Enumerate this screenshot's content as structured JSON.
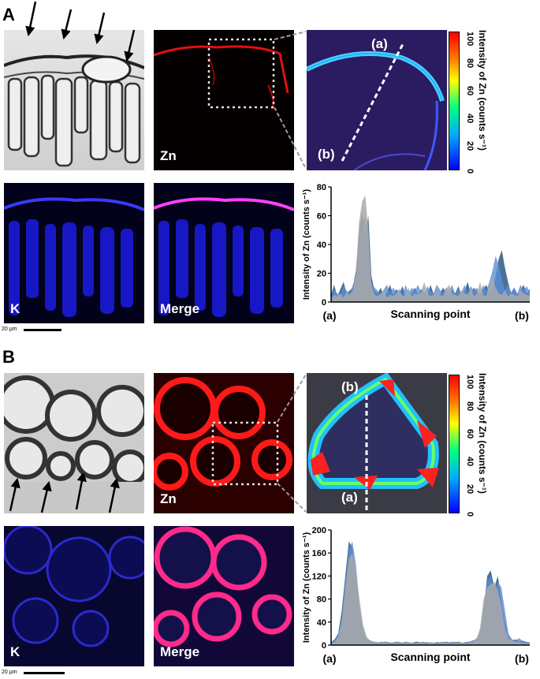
{
  "panelA": {
    "letter": "A",
    "zn_label": "Zn",
    "k_label": "K",
    "merge_label": "Merge",
    "scale_label": "20 μm",
    "line_a": "(a)",
    "line_b": "(b)",
    "colorbar": {
      "ticks": [
        "0",
        "20",
        "40",
        "60",
        "80",
        "100"
      ],
      "title": "Intensity of Zn (counts s⁻¹)"
    }
  },
  "panelB": {
    "letter": "B",
    "zn_label": "Zn",
    "k_label": "K",
    "merge_label": "Merge",
    "scale_label": "20 μm",
    "line_a": "(a)",
    "line_b": "(b)",
    "colorbar": {
      "ticks": [
        "0",
        "20",
        "40",
        "60",
        "80",
        "100"
      ],
      "title": "Intensity of Zn (counts s⁻¹)"
    }
  },
  "chart_data": [
    {
      "type": "area",
      "ylabel": "Intensity of Zn (counts s⁻¹)",
      "xlabel": "Scanning point",
      "x_start_label": "(a)",
      "x_end_label": "(b)",
      "yticks": [
        "0",
        "20",
        "40",
        "60",
        "80"
      ],
      "ylim": [
        0,
        80
      ],
      "series": [
        {
          "color": "#1f4e79",
          "values": [
            5,
            12,
            4,
            9,
            14,
            6,
            8,
            10,
            22,
            48,
            62,
            45,
            60,
            18,
            8,
            6,
            10,
            4,
            7,
            12,
            5,
            9,
            6,
            11,
            4,
            8,
            6,
            10,
            5,
            9,
            7,
            4,
            12,
            6,
            8,
            5,
            10,
            7,
            4,
            9,
            6,
            11,
            5,
            8,
            14,
            6,
            10,
            7,
            5,
            9,
            12,
            6,
            8,
            18,
            30,
            36,
            24,
            14,
            6,
            10,
            5,
            8,
            12,
            6,
            9
          ]
        },
        {
          "color": "#5b8fd6",
          "values": [
            3,
            9,
            6,
            5,
            11,
            8,
            6,
            12,
            18,
            40,
            55,
            60,
            42,
            14,
            10,
            8,
            5,
            9,
            12,
            6,
            10,
            7,
            9,
            5,
            12,
            6,
            10,
            8,
            12,
            7,
            5,
            11,
            8,
            6,
            12,
            9,
            6,
            10,
            8,
            12,
            5,
            9,
            7,
            12,
            6,
            11,
            8,
            10,
            6,
            12,
            8,
            14,
            22,
            32,
            26,
            16,
            8,
            12,
            7,
            10,
            6,
            12,
            8,
            11,
            7
          ]
        },
        {
          "color": "#a9a9a9",
          "values": [
            2,
            5,
            4,
            6,
            3,
            7,
            5,
            8,
            20,
            55,
            70,
            74,
            50,
            12,
            5,
            4,
            6,
            8,
            3,
            5,
            4,
            6,
            8,
            4,
            5,
            10,
            4,
            6,
            5,
            7,
            14,
            6,
            4,
            5,
            8,
            5,
            4,
            9,
            12,
            6,
            5,
            4,
            8,
            6,
            5,
            10,
            4,
            6,
            14,
            5,
            4,
            12,
            18,
            10,
            6,
            5,
            8,
            4,
            6,
            5,
            4,
            8,
            6,
            5,
            4
          ]
        }
      ]
    },
    {
      "type": "area",
      "ylabel": "Intensity of Zn (counts s⁻¹)",
      "xlabel": "Scanning point",
      "x_start_label": "(a)",
      "x_end_label": "(b)",
      "yticks": [
        "0",
        "40",
        "80",
        "120",
        "160",
        "200"
      ],
      "ylim": [
        0,
        200
      ],
      "series": [
        {
          "color": "#1f4e79",
          "values": [
            5,
            10,
            20,
            60,
            120,
            180,
            170,
            120,
            60,
            25,
            10,
            8,
            6,
            5,
            4,
            6,
            5,
            4,
            5,
            6,
            4,
            5,
            3,
            4,
            6,
            5,
            4,
            5,
            3,
            4,
            5,
            4,
            6,
            5,
            4,
            5,
            6,
            4,
            5,
            6,
            8,
            10,
            20,
            60,
            120,
            130,
            100,
            120,
            80,
            40,
            15,
            8,
            10,
            6,
            8,
            5,
            4
          ]
        },
        {
          "color": "#5b8fd6",
          "values": [
            4,
            8,
            18,
            50,
            110,
            165,
            180,
            140,
            70,
            30,
            12,
            6,
            5,
            4,
            6,
            5,
            4,
            3,
            6,
            5,
            4,
            6,
            5,
            4,
            3,
            5,
            6,
            4,
            5,
            4,
            3,
            6,
            5,
            4,
            6,
            5,
            4,
            3,
            5,
            6,
            7,
            12,
            25,
            70,
            110,
            120,
            90,
            110,
            100,
            60,
            20,
            10,
            8,
            12,
            7,
            6,
            5
          ]
        },
        {
          "color": "#a9a9a9",
          "values": [
            3,
            6,
            15,
            40,
            100,
            150,
            160,
            130,
            80,
            35,
            15,
            8,
            6,
            5,
            4,
            5,
            4,
            3,
            4,
            5,
            3,
            4,
            5,
            3,
            4,
            5,
            4,
            3,
            5,
            4,
            3,
            4,
            5,
            4,
            3,
            4,
            5,
            4,
            3,
            5,
            6,
            10,
            30,
            80,
            100,
            105,
            110,
            95,
            70,
            30,
            12,
            8,
            6,
            5,
            4,
            3,
            4
          ]
        }
      ]
    }
  ]
}
